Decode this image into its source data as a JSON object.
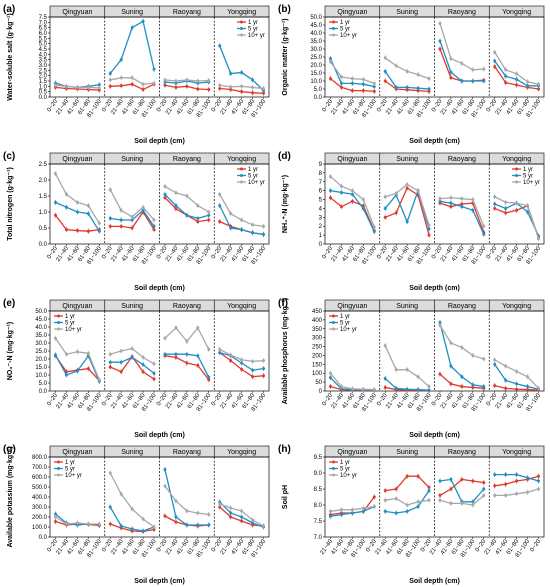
{
  "figure": {
    "sites": [
      "Qingyuan",
      "Suning",
      "Raoyang",
      "Yongqing"
    ],
    "series_names": [
      "1 yr",
      "5 yr",
      "10+ yr"
    ],
    "colors": {
      "1 yr": "#e03a2e",
      "5 yr": "#1f8fc4",
      "10+ yr": "#a8a8a8"
    },
    "header_fill": "#dcdcdc"
  },
  "chart_data": [
    {
      "panel": "(a)",
      "type": "line",
      "xlabel": "Soil depth (cm)",
      "ylabel": "Water-soluble salt (g·kg⁻¹)",
      "categories": [
        "0~20",
        "21~40",
        "41~60",
        "61~80",
        "81~100"
      ],
      "ylim": [
        0,
        7.5
      ],
      "yticks": [
        "0.0",
        "0.5",
        "1.0",
        "1.5",
        "2.0",
        "2.5",
        "3.0",
        "3.5",
        "4.0",
        "4.5",
        "5.0",
        "5.5",
        "6.0",
        "6.5",
        "7.0",
        "7.5"
      ],
      "legend": "top-right",
      "show_xticks": false,
      "series": [
        {
          "name": "1 yr",
          "values": [
            [
              0.9,
              0.8,
              0.75,
              0.7,
              0.65
            ],
            [
              1.0,
              1.05,
              1.2,
              0.7,
              1.2
            ],
            [
              1.1,
              0.9,
              1.0,
              0.75,
              0.7
            ],
            [
              0.8,
              0.7,
              0.5,
              0.4,
              0.35
            ]
          ]
        },
        {
          "name": "5 yr",
          "values": [
            [
              1.3,
              1.0,
              0.9,
              1.0,
              1.15
            ],
            [
              2.2,
              3.5,
              6.5,
              7.1,
              2.6
            ],
            [
              1.4,
              1.3,
              1.5,
              1.3,
              1.4
            ],
            [
              4.8,
              2.2,
              2.3,
              1.6,
              0.6
            ]
          ]
        },
        {
          "name": "10+ yr",
          "values": [
            [
              1.1,
              1.0,
              0.9,
              0.9,
              0.85
            ],
            [
              1.6,
              1.8,
              1.8,
              1.2,
              1.3
            ],
            [
              1.6,
              1.5,
              1.6,
              1.5,
              1.55
            ],
            [
              1.1,
              0.95,
              1.0,
              0.9,
              0.8
            ]
          ]
        }
      ]
    },
    {
      "panel": "(b)",
      "type": "line",
      "xlabel": "Soil depth (cm)",
      "ylabel": "Organic matter (g·kg⁻¹)",
      "categories": [
        "0~20",
        "21~40",
        "41~60",
        "61~80",
        "81~100"
      ],
      "ylim": [
        0,
        50
      ],
      "yticks": [
        "0.0",
        "5.0",
        "10.0",
        "15.0",
        "20.0",
        "25.0",
        "30.0",
        "35.0",
        "40.0",
        "45.0",
        "50.0"
      ],
      "legend": "top-left",
      "show_xticks": false,
      "series": [
        {
          "name": "1 yr",
          "values": [
            [
              11.5,
              6.0,
              4.0,
              4.0,
              3.5
            ],
            [
              10.0,
              5.0,
              4.5,
              4.0,
              3.5
            ],
            [
              30.0,
              12.0,
              10.0,
              10.0,
              10.5
            ],
            [
              19.0,
              9.0,
              7.5,
              6.0,
              5.0
            ]
          ]
        },
        {
          "name": "5 yr",
          "values": [
            [
              24.0,
              8.5,
              8.5,
              8.0,
              6.5
            ],
            [
              16.0,
              6.0,
              6.0,
              5.5,
              5.0
            ],
            [
              35.0,
              15.5,
              10.0,
              10.0,
              10.0
            ],
            [
              22.5,
              13.0,
              11.0,
              7.0,
              7.0
            ]
          ]
        },
        {
          "name": "10+ yr",
          "values": [
            [
              22.0,
              12.5,
              11.5,
              11.0,
              8.5
            ],
            [
              24.5,
              19.5,
              16.0,
              14.0,
              11.5
            ],
            [
              46.0,
              24.0,
              21.0,
              17.0,
              17.5
            ],
            [
              28.0,
              17.0,
              14.5,
              9.5,
              8.0
            ]
          ]
        }
      ]
    },
    {
      "panel": "(c)",
      "type": "line",
      "xlabel": "Soil depth (cm)",
      "ylabel": "Total nitrogen (g·kg⁻¹)",
      "categories": [
        "0~20",
        "21~40",
        "41~60",
        "61~80",
        "81~100"
      ],
      "ylim": [
        0,
        2.5
      ],
      "yticks": [
        "0.0",
        "0.5",
        "1.0",
        "1.5",
        "2.0",
        "2.5"
      ],
      "legend": "top-right",
      "show_xticks": false,
      "series": [
        {
          "name": "1 yr",
          "values": [
            [
              0.9,
              0.45,
              0.42,
              0.4,
              0.45
            ],
            [
              0.55,
              0.55,
              0.5,
              1.0,
              0.45
            ],
            [
              1.45,
              1.1,
              0.9,
              0.7,
              0.75
            ],
            [
              0.7,
              0.55,
              0.45,
              0.35,
              0.3
            ]
          ]
        },
        {
          "name": "5 yr",
          "values": [
            [
              1.3,
              1.15,
              1.0,
              0.95,
              0.4
            ],
            [
              0.8,
              0.75,
              0.75,
              1.05,
              0.55
            ],
            [
              1.55,
              1.2,
              0.9,
              0.8,
              0.9
            ],
            [
              1.2,
              0.5,
              0.45,
              0.35,
              0.3
            ]
          ]
        },
        {
          "name": "10+ yr",
          "values": [
            [
              2.2,
              1.55,
              1.3,
              1.2,
              0.65
            ],
            [
              1.7,
              1.05,
              0.85,
              1.15,
              0.75
            ],
            [
              1.8,
              1.6,
              1.5,
              1.2,
              1.0
            ],
            [
              1.55,
              0.95,
              0.75,
              0.6,
              0.55
            ]
          ]
        }
      ]
    },
    {
      "panel": "(d)",
      "type": "line",
      "xlabel": "Soil depth (cm)",
      "ylabel": "NH₄⁺-N (mg·kg⁻¹)",
      "categories": [
        "0~20",
        "21~40",
        "41~60",
        "61~80",
        "81~100"
      ],
      "ylim": [
        0,
        9
      ],
      "yticks": [
        "0",
        "1",
        "2",
        "3",
        "4",
        "5",
        "6",
        "7",
        "8",
        "9"
      ],
      "legend": "top-right",
      "show_xticks": false,
      "series": [
        {
          "name": "1 yr",
          "values": [
            [
              5.2,
              4.2,
              4.8,
              4.3,
              1.5
            ],
            [
              3.0,
              3.5,
              6.3,
              5.5,
              1.0
            ],
            [
              4.6,
              4.2,
              4.5,
              4.6,
              1.3
            ],
            [
              4.0,
              3.5,
              3.8,
              4.3,
              0.7
            ]
          ]
        },
        {
          "name": "5 yr",
          "values": [
            [
              6.0,
              5.8,
              5.6,
              4.0,
              1.4
            ],
            [
              4.0,
              5.5,
              2.5,
              6.0,
              1.7
            ],
            [
              4.8,
              4.6,
              4.2,
              3.8,
              1.1
            ],
            [
              4.5,
              4.0,
              4.6,
              3.6,
              0.9
            ]
          ]
        },
        {
          "name": "10+ yr",
          "values": [
            [
              7.6,
              6.5,
              6.0,
              5.0,
              1.9
            ],
            [
              5.3,
              5.7,
              6.7,
              6.0,
              2.1
            ],
            [
              5.1,
              5.2,
              5.1,
              5.0,
              2.0
            ],
            [
              5.3,
              4.7,
              4.6,
              4.3,
              0.6
            ]
          ]
        }
      ]
    },
    {
      "panel": "(e)",
      "type": "line",
      "xlabel": "Soil depth (cm)",
      "ylabel": "NO₃⁻-N (mg·kg⁻¹)",
      "categories": [
        "0~20",
        "21~40",
        "41~60",
        "61~80",
        "81~100"
      ],
      "ylim": [
        0,
        50
      ],
      "yticks": [
        "0.0",
        "5.0",
        "10.0",
        "15.0",
        "20.0",
        "25.0",
        "30.0",
        "35.0",
        "40.0",
        "45.0",
        "50.0"
      ],
      "legend": "top-left",
      "show_xticks": false,
      "series": [
        {
          "name": "1 yr",
          "values": [
            [
              22.0,
              12.0,
              13.0,
              14.0,
              6.5
            ],
            [
              15.0,
              12.0,
              21.5,
              12.0,
              7.5
            ],
            [
              22.0,
              21.0,
              17.5,
              16.0,
              7.0
            ],
            [
              24.0,
              19.0,
              13.5,
              9.0,
              9.5
            ]
          ]
        },
        {
          "name": "5 yr",
          "values": [
            [
              22.5,
              10.0,
              12.5,
              22.0,
              6.0
            ],
            [
              18.0,
              18.0,
              21.0,
              16.5,
              11.0
            ],
            [
              23.0,
              23.0,
              23.0,
              22.0,
              8.5
            ],
            [
              24.0,
              22.0,
              17.5,
              13.0,
              14.0
            ]
          ]
        },
        {
          "name": "10+ yr",
          "values": [
            [
              33.0,
              23.0,
              24.5,
              23.5,
              7.0
            ],
            [
              23.0,
              25.0,
              26.5,
              21.0,
              17.0
            ],
            [
              33.0,
              39.5,
              31.0,
              39.5,
              26.0
            ],
            [
              26.0,
              22.5,
              19.5,
              18.5,
              19.0
            ]
          ]
        }
      ]
    },
    {
      "panel": "(f)",
      "type": "line",
      "xlabel": "Soil depth (cm)",
      "ylabel": "Available phosphorus (mg·kg⁻¹)",
      "categories": [
        "0~20",
        "21~40",
        "41~60",
        "61~80",
        "81~100"
      ],
      "ylim": [
        0,
        450
      ],
      "yticks": [
        "0",
        "50",
        "100",
        "150",
        "200",
        "250",
        "300",
        "350",
        "400",
        "450"
      ],
      "legend": "top-left",
      "show_xticks": false,
      "series": [
        {
          "name": "1 yr",
          "values": [
            [
              25,
              8,
              5,
              4,
              3
            ],
            [
              20,
              8,
              5,
              4,
              3
            ],
            [
              95,
              40,
              25,
              20,
              15
            ],
            [
              30,
              15,
              10,
              8,
              5
            ]
          ]
        },
        {
          "name": "5 yr",
          "values": [
            [
              75,
              12,
              8,
              6,
              5
            ],
            [
              70,
              15,
              10,
              8,
              5
            ],
            [
              385,
              140,
              80,
              35,
              25
            ],
            [
              150,
              60,
              40,
              25,
              10
            ]
          ]
        },
        {
          "name": "10+ yr",
          "values": [
            [
              100,
              25,
              12,
              10,
              8
            ],
            [
              255,
              120,
              120,
              80,
              25
            ],
            [
              370,
              270,
              245,
              200,
              180
            ],
            [
              175,
              140,
              110,
              80,
              15
            ]
          ]
        }
      ]
    },
    {
      "panel": "(g)",
      "type": "line",
      "xlabel": "Soil depth (cm)",
      "ylabel": "Available potassium (mg·kg⁻¹)",
      "categories": [
        "0~20",
        "21~40",
        "41~60",
        "61~80",
        "81~100"
      ],
      "ylim": [
        0,
        800
      ],
      "yticks": [
        "0.0",
        "100.0",
        "200.0",
        "300.0",
        "400.0",
        "500.0",
        "600.0",
        "700.0",
        "800.0"
      ],
      "legend": "top-left",
      "show_xticks": true,
      "series": [
        {
          "name": "1 yr",
          "values": [
            [
              155,
              120,
              130,
              125,
              115
            ],
            [
              130,
              90,
              60,
              55,
              75
            ],
            [
              210,
              150,
              120,
              110,
              120
            ],
            [
              300,
              200,
              160,
              120,
              110
            ]
          ]
        },
        {
          "name": "5 yr",
          "values": [
            [
              230,
              140,
              120,
              130,
              125
            ],
            [
              300,
              110,
              80,
              60,
              100
            ],
            [
              675,
              200,
              120,
              120,
              120
            ],
            [
              350,
              240,
              200,
              140,
              100
            ]
          ]
        },
        {
          "name": "10+ yr",
          "values": [
            [
              200,
              130,
              140,
              130,
              130
            ],
            [
              640,
              430,
              280,
              180,
              100
            ],
            [
              510,
              360,
              260,
              240,
              225
            ],
            [
              330,
              290,
              260,
              170,
              110
            ]
          ]
        }
      ]
    },
    {
      "panel": "(h)",
      "type": "line",
      "xlabel": "Soil depth (cm)",
      "ylabel": "Soil pH",
      "categories": [
        "21~40",
        "41~60",
        "61~80",
        "81~100",
        "0~20"
      ],
      "ylim": [
        7.0,
        9.5
      ],
      "yticks": [
        "7.0",
        "7.5",
        "8.0",
        "8.5",
        "9.0",
        "9.5"
      ],
      "legend": "top-left",
      "show_xticks": true,
      "series": [
        {
          "name": "1 yr",
          "values": [
            [
              7.7,
              7.75,
              7.75,
              7.8,
              8.25
            ],
            [
              8.45,
              8.5,
              8.9,
              8.9,
              8.55
            ],
            [
              8.3,
              8.5,
              8.8,
              8.75,
              8.7
            ],
            [
              8.6,
              8.65,
              8.75,
              8.8,
              8.9
            ]
          ]
        },
        {
          "name": "5 yr",
          "values": [
            [
              7.65,
              7.7,
              7.75,
              7.8,
              7.95
            ],
            [
              7.8,
              7.75,
              7.8,
              7.95,
              8.45
            ],
            [
              8.75,
              8.8,
              8.1,
              8.1,
              8.5
            ],
            [
              8.95,
              8.95,
              8.95,
              8.85,
              8.75
            ]
          ]
        },
        {
          "name": "10+ yr",
          "values": [
            [
              7.8,
              7.85,
              7.85,
              7.9,
              7.95
            ],
            [
              8.15,
              8.2,
              8.0,
              8.1,
              8.15
            ],
            [
              8.15,
              8.05,
              8.05,
              8.0,
              8.3
            ],
            [
              8.3,
              8.3,
              8.35,
              8.4,
              8.5
            ]
          ]
        }
      ]
    }
  ]
}
